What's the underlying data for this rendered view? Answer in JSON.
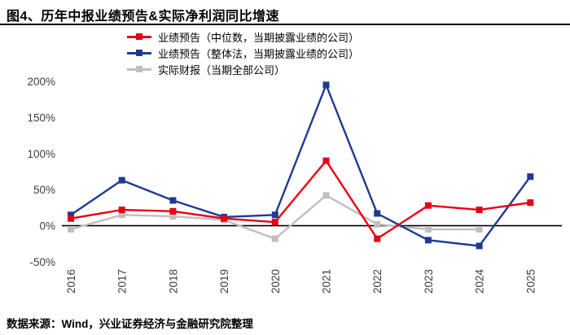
{
  "header": {
    "title": "图4、历年中报业绩预告&实际净利润同比增速"
  },
  "footer": {
    "source": "数据来源：Wind，兴业证券经济与金融研究院整理"
  },
  "chart_data": {
    "type": "line",
    "title": "历年中报业绩预告&实际净利润同比增速",
    "categories": [
      "2016",
      "2017",
      "2018",
      "2019",
      "2020",
      "2021",
      "2022",
      "2023",
      "2024",
      "2025"
    ],
    "series": [
      {
        "name": "业绩预告（中位数，当期披露业绩的公司）",
        "color": "#e60014",
        "marker": "square",
        "values": [
          10,
          22,
          20,
          10,
          5,
          90,
          -18,
          28,
          22,
          32
        ]
      },
      {
        "name": "业绩预告（整体法，当期披露业绩的公司）",
        "color": "#1e3a93",
        "marker": "square",
        "values": [
          15,
          63,
          35,
          12,
          15,
          195,
          17,
          -20,
          -28,
          68
        ]
      },
      {
        "name": "实际财报（当期全部公司）",
        "color": "#bfbfbf",
        "marker": "square",
        "values": [
          -5,
          15,
          13,
          8,
          -18,
          42,
          2,
          -5,
          -5,
          null
        ]
      }
    ],
    "ylim": [
      -50,
      200
    ],
    "yticks": [
      200,
      150,
      100,
      50,
      0,
      -50
    ],
    "ytick_suffix": "%",
    "grid": false,
    "zero_axis_color": "#000000",
    "legend_position": "top-left"
  }
}
